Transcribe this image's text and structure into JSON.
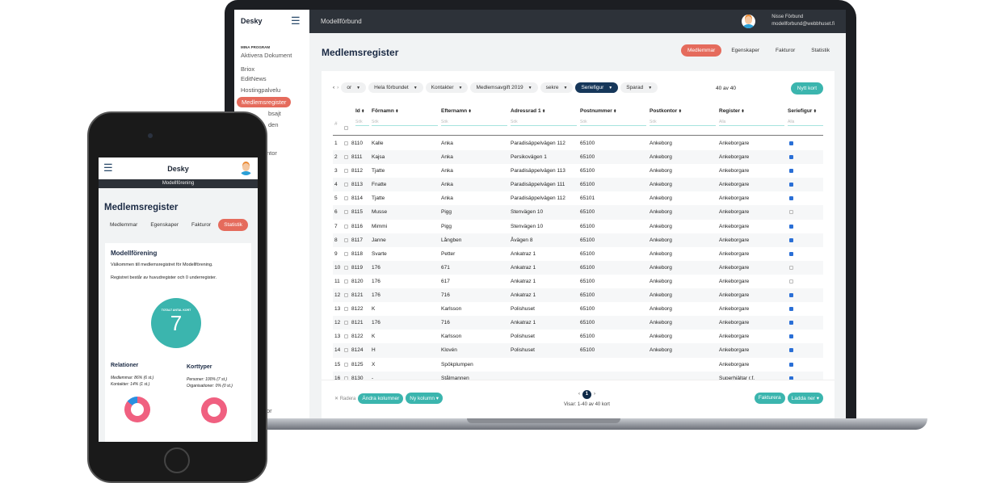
{
  "app": {
    "logo": "Desky",
    "org": "Modellförbund"
  },
  "user": {
    "name": "Nisse Förbund",
    "email": "modellforbund@webbhuset.fi"
  },
  "sidebar": {
    "section": "MINA PROGRAM",
    "items": [
      "Aktivera Dokument",
      "Briox",
      "EditNews",
      "Hostingpalvelu",
      "Medlemsregister"
    ],
    "active": "Medlemsregister",
    "hidden_fragments": [
      "bsajt",
      "den",
      "ntor",
      "or"
    ]
  },
  "page": {
    "title": "Medlemsregister",
    "tabs": [
      "Medlemmar",
      "Egenskaper",
      "Fakturor",
      "Statistik"
    ],
    "active_tab": "Medlemmar"
  },
  "filters": {
    "items": [
      "or",
      "Hela förbundet",
      "Kontakter",
      "Medlemsavgift 2019",
      "sekre",
      "Seriefigur",
      "Sparad"
    ],
    "active": "Seriefigur",
    "count": "40 av 40",
    "new_button": "Nytt kort"
  },
  "table": {
    "columns": [
      "#",
      "Id",
      "Förnamn",
      "Efternamn",
      "Adressrad 1",
      "Postnummer",
      "Postkontor",
      "Register",
      "Seriefigur"
    ],
    "filter_placeholders": {
      "text": "Sök",
      "select": "Alla"
    },
    "rows": [
      [
        "1",
        "8110",
        "Kalle",
        "Anka",
        "Paradisäppelvägen 112",
        "65100",
        "Ankeborg",
        "Ankeborgare",
        true
      ],
      [
        "2",
        "8111",
        "Kajsa",
        "Anka",
        "Persikovägen 1",
        "65100",
        "Ankeborg",
        "Ankeborgare",
        true
      ],
      [
        "3",
        "8112",
        "Tjatte",
        "Anka",
        "Paradisäppelvägen 113",
        "65100",
        "Ankeborg",
        "Ankeborgare",
        true
      ],
      [
        "4",
        "8113",
        "Fnatte",
        "Anka",
        "Paradisäppelvägen 111",
        "65100",
        "Ankeborg",
        "Ankeborgare",
        true
      ],
      [
        "5",
        "8114",
        "Tjatte",
        "Anka",
        "Paradisäppelvägen 112",
        "65101",
        "Ankeborg",
        "Ankeborgare",
        true
      ],
      [
        "6",
        "8115",
        "Musse",
        "Pigg",
        "Stenvägen 10",
        "65100",
        "Ankeborg",
        "Ankeborgare",
        false
      ],
      [
        "7",
        "8116",
        "Mimmi",
        "Pigg",
        "Stenvägen 10",
        "65100",
        "Ankeborg",
        "Ankeborgare",
        true
      ],
      [
        "8",
        "8117",
        "Janne",
        "Långben",
        "Åvägen 8",
        "65100",
        "Ankeborg",
        "Ankeborgare",
        true
      ],
      [
        "9",
        "8118",
        "Svarte",
        "Petter",
        "Ankatraz 1",
        "65100",
        "Ankeborg",
        "Ankeborgare",
        true
      ],
      [
        "10",
        "8119",
        "176",
        "671",
        "Ankatraz 1",
        "65100",
        "Ankeborg",
        "Ankeborgare",
        false
      ],
      [
        "11",
        "8120",
        "176",
        "617",
        "Ankatraz 1",
        "65100",
        "Ankeborg",
        "Ankeborgare",
        false
      ],
      [
        "12",
        "8121",
        "176",
        "716",
        "Ankatraz 1",
        "65100",
        "Ankeborg",
        "Ankeborgare",
        true
      ],
      [
        "13",
        "8122",
        "K",
        "Karlsson",
        "Polishuset",
        "65100",
        "Ankeborg",
        "Ankeborgare",
        true
      ],
      [
        "12",
        "8121",
        "176",
        "716",
        "Ankatraz 1",
        "65100",
        "Ankeborg",
        "Ankeborgare",
        true
      ],
      [
        "13",
        "8122",
        "K",
        "Karlsson",
        "Polishuset",
        "65100",
        "Ankeborg",
        "Ankeborgare",
        true
      ],
      [
        "14",
        "8124",
        "H",
        "Klovén",
        "Polishuset",
        "65100",
        "Ankeborg",
        "Ankeborgare",
        true
      ],
      [
        "15",
        "8125",
        "X",
        "Spökplumpen",
        "",
        "",
        "",
        "Ankeborgare",
        true
      ],
      [
        "16",
        "8130",
        "-",
        "Stålmannen",
        "",
        "",
        "",
        "Superhjältar r.f.",
        true
      ]
    ]
  },
  "footer": {
    "delete": "Radera",
    "change_columns": "Ändra kolumner",
    "new_column": "Ny kolumn",
    "page": "1",
    "showing": "Visar: 1-40 av 40 kort",
    "invoice": "Fakturera",
    "download": "Ladda ner"
  },
  "phone": {
    "org": "Modellförening",
    "title": "Medlemsregister",
    "tabs": [
      "Medlemmar",
      "Egenskaper",
      "Fakturor",
      "Statistik"
    ],
    "active_tab": "Statistik",
    "card_title": "Modellförening",
    "welcome": "Välkommen till medlemsregistret för Modellförening.",
    "info": "Registret består av huvudregister och 0 underregister.",
    "total_label": "TOTALT ANTAL KORT",
    "total": "7",
    "relations": {
      "title": "Relationer",
      "lines": [
        "Medlemmar: 86% (6 st.)",
        "Kontakter: 14% (1 st.)"
      ],
      "shares": [
        86,
        14
      ]
    },
    "cardtypes": {
      "title": "Korttyper",
      "lines": [
        "Personer: 100% (7 st.)",
        "Organisationer: 0% (0 st.)"
      ],
      "shares": [
        100,
        0
      ]
    },
    "colors": {
      "primary": "#f06080",
      "secondary": "#2a8fe0"
    }
  },
  "colors": {
    "accent": "#e56b5c",
    "teal": "#3bb5ae",
    "navy": "#16375a",
    "topbar": "#2d3239"
  }
}
